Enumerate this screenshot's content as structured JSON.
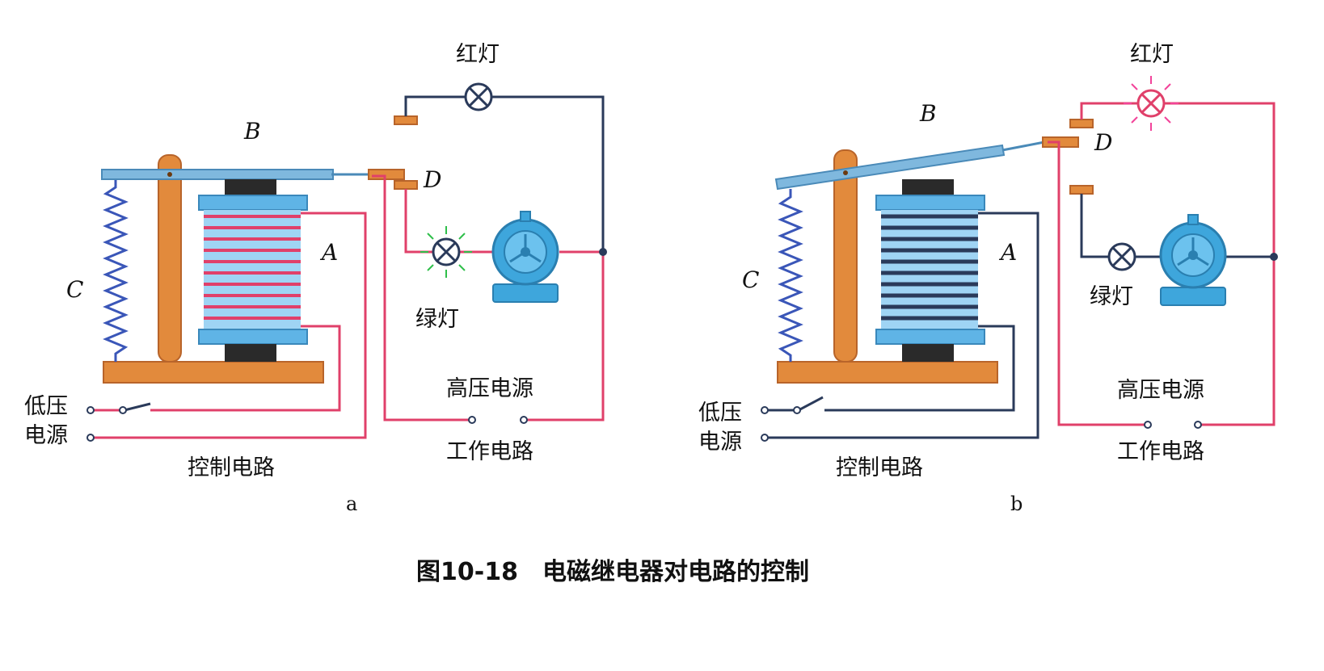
{
  "caption": "图10-18　电磁继电器对电路的控制",
  "panel_a": {
    "sublabel": "a",
    "label_B": "B",
    "label_C": "C",
    "label_A": "A",
    "label_D": "D",
    "red_lamp": "红灯",
    "green_lamp": "绿灯",
    "low_voltage_1": "低压",
    "low_voltage_2": "电源",
    "high_voltage": "高压电源",
    "control_circuit": "控制电路",
    "work_circuit": "工作电路"
  },
  "panel_b": {
    "sublabel": "b",
    "label_B": "B",
    "label_C": "C",
    "label_A": "A",
    "label_D": "D",
    "red_lamp": "红灯",
    "green_lamp": "绿灯",
    "low_voltage_1": "低压",
    "low_voltage_2": "电源",
    "high_voltage": "高压电源",
    "control_circuit": "控制电路",
    "work_circuit": "工作电路"
  },
  "colors": {
    "wire_red": "#e0406a",
    "wire_dark": "#2a3a5a",
    "wood": "#e28a3c",
    "wood_edge": "#b8642a",
    "armature": "#7fb8de",
    "coil_blue": "#5fb4e6",
    "core_dark": "#2a2a2a",
    "motor": "#3ea6dc",
    "spring": "#3a56b8",
    "green_glow": "#2fbf4a",
    "red_glow": "#f2439a"
  }
}
